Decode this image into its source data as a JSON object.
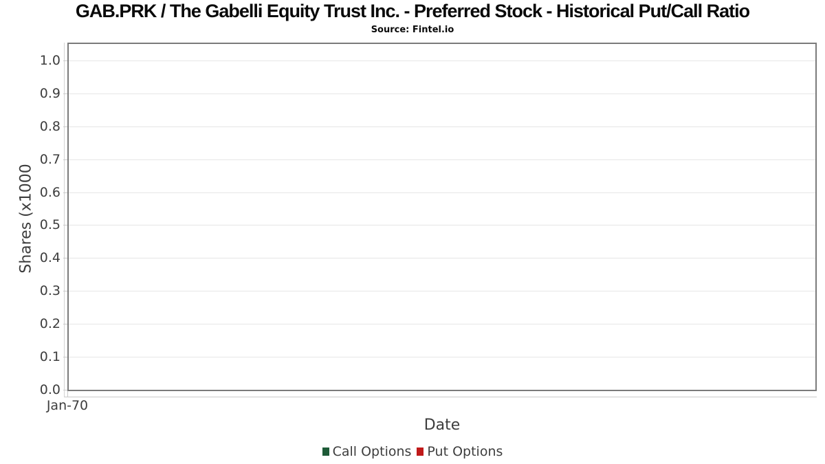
{
  "chart_data": {
    "type": "line",
    "title": "GAB.PRK / The Gabelli Equity Trust Inc. - Preferred Stock - Historical Put/Call Ratio",
    "subtitle": "Source: Fintel.io",
    "xlabel": "Date",
    "ylabel": "Shares (x1000",
    "x_tick_labels": [
      "Jan-70"
    ],
    "y_ticks": [
      0.0,
      0.1,
      0.2,
      0.3,
      0.4,
      0.5,
      0.6,
      0.7,
      0.8,
      0.9,
      1.0
    ],
    "ylim": [
      0,
      1.05
    ],
    "grid": "horizontal",
    "legend_position": "bottom",
    "series": [
      {
        "name": "Call Options",
        "color": "#1e5b38",
        "x": [],
        "values": []
      },
      {
        "name": "Put Options",
        "color": "#c01a1a",
        "x": [],
        "values": []
      }
    ],
    "colors": {
      "plot_border": "#7a7a7a",
      "gridline": "#e6e6e6",
      "axis_line": "#c9c9c9",
      "text": "#3d3d3d",
      "title_text": "#0a0a0a"
    }
  }
}
